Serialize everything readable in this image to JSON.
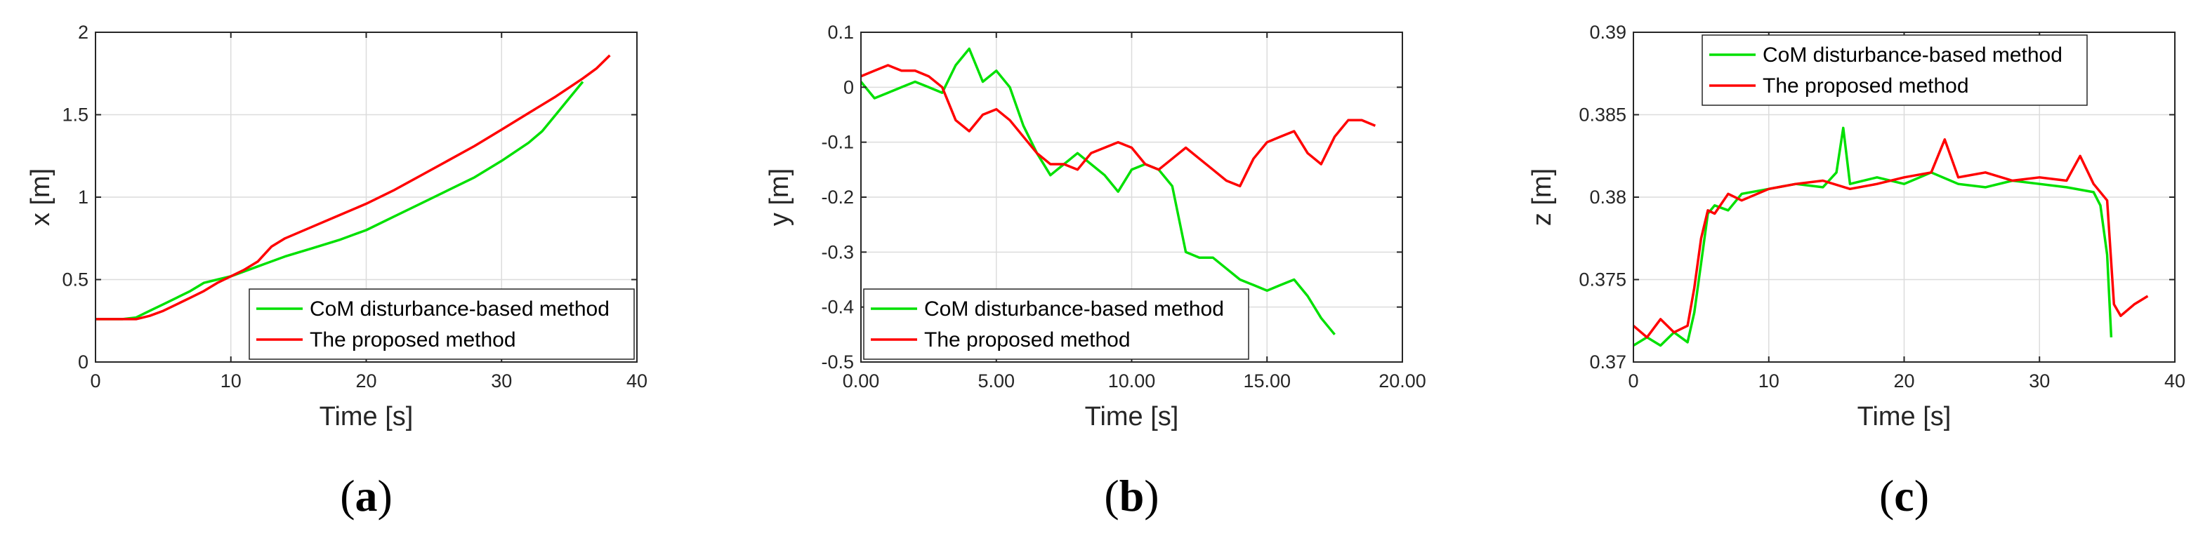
{
  "chart_data": [
    {
      "type": "line",
      "panel_label": "a",
      "xlabel": "Time [s]",
      "ylabel": "x [m]",
      "xlim": [
        0,
        40
      ],
      "ylim": [
        0,
        2
      ],
      "xticks": [
        0,
        10,
        20,
        30,
        40
      ],
      "xtick_labels": [
        "0",
        "10",
        "20",
        "30",
        "40"
      ],
      "yticks": [
        0,
        0.5,
        1,
        1.5,
        2
      ],
      "ytick_labels": [
        "0",
        "0.5",
        "1",
        "1.5",
        "2"
      ],
      "grid": true,
      "legend_position": "bottom-right",
      "series": [
        {
          "name": "CoM disturbance-based method",
          "color": "#00e000",
          "x": [
            0,
            2,
            3,
            4,
            5,
            6,
            7,
            8,
            9,
            10,
            12,
            14,
            16,
            18,
            19,
            20,
            22,
            24,
            26,
            28,
            30,
            32,
            33,
            34,
            35,
            36
          ],
          "y": [
            0.26,
            0.26,
            0.27,
            0.31,
            0.35,
            0.39,
            0.43,
            0.48,
            0.5,
            0.52,
            0.58,
            0.64,
            0.69,
            0.74,
            0.77,
            0.8,
            0.88,
            0.96,
            1.04,
            1.12,
            1.22,
            1.33,
            1.4,
            1.5,
            1.6,
            1.7
          ]
        },
        {
          "name": "The proposed method",
          "color": "#ff0000",
          "x": [
            0,
            2,
            3,
            4,
            5,
            6,
            7,
            8,
            9,
            10,
            11,
            12,
            13,
            14,
            16,
            18,
            20,
            22,
            24,
            26,
            28,
            30,
            32,
            34,
            36,
            37,
            38
          ],
          "y": [
            0.26,
            0.26,
            0.26,
            0.28,
            0.31,
            0.35,
            0.39,
            0.43,
            0.48,
            0.52,
            0.56,
            0.61,
            0.7,
            0.75,
            0.82,
            0.89,
            0.96,
            1.04,
            1.13,
            1.22,
            1.31,
            1.41,
            1.51,
            1.61,
            1.72,
            1.78,
            1.86
          ]
        }
      ]
    },
    {
      "type": "line",
      "panel_label": "b",
      "xlabel": "Time [s]",
      "ylabel": "y [m]",
      "xlim": [
        0,
        20
      ],
      "ylim": [
        -0.5,
        0.1
      ],
      "xticks": [
        0,
        5,
        10,
        15,
        20
      ],
      "xtick_labels": [
        "0.00",
        "5.00",
        "10.00",
        "15.00",
        "20.00"
      ],
      "yticks": [
        -0.5,
        -0.4,
        -0.3,
        -0.2,
        -0.1,
        0,
        0.1
      ],
      "ytick_labels": [
        "-0.5",
        "-0.4",
        "-0.3",
        "-0.2",
        "-0.1",
        "0",
        "0.1"
      ],
      "grid": true,
      "legend_position": "bottom-left",
      "series": [
        {
          "name": "CoM disturbance-based method",
          "color": "#00e000",
          "x": [
            0,
            0.5,
            1,
            1.5,
            2,
            2.5,
            3,
            3.5,
            4,
            4.5,
            5,
            5.5,
            6,
            6.5,
            7,
            7.5,
            8,
            8.5,
            9,
            9.5,
            10,
            10.5,
            11,
            11.5,
            12,
            12.5,
            13,
            13.5,
            14,
            14.5,
            15,
            15.5,
            16,
            16.5,
            17,
            17.5
          ],
          "y": [
            0.01,
            -0.02,
            -0.01,
            0.0,
            0.01,
            0.0,
            -0.01,
            0.04,
            0.07,
            0.01,
            0.03,
            0.0,
            -0.07,
            -0.12,
            -0.16,
            -0.14,
            -0.12,
            -0.14,
            -0.16,
            -0.19,
            -0.15,
            -0.14,
            -0.15,
            -0.18,
            -0.3,
            -0.31,
            -0.31,
            -0.33,
            -0.35,
            -0.36,
            -0.37,
            -0.36,
            -0.35,
            -0.38,
            -0.42,
            -0.45
          ]
        },
        {
          "name": "The proposed method",
          "color": "#ff0000",
          "x": [
            0,
            0.5,
            1,
            1.5,
            2,
            2.5,
            3,
            3.5,
            4,
            4.5,
            5,
            5.5,
            6,
            6.5,
            7,
            7.5,
            8,
            8.5,
            9,
            9.5,
            10,
            10.5,
            11,
            11.5,
            12,
            12.5,
            13,
            13.5,
            14,
            14.5,
            15,
            15.5,
            16,
            16.5,
            17,
            17.5,
            18,
            18.5,
            19
          ],
          "y": [
            0.02,
            0.03,
            0.04,
            0.03,
            0.03,
            0.02,
            0.0,
            -0.06,
            -0.08,
            -0.05,
            -0.04,
            -0.06,
            -0.09,
            -0.12,
            -0.14,
            -0.14,
            -0.15,
            -0.12,
            -0.11,
            -0.1,
            -0.11,
            -0.14,
            -0.15,
            -0.13,
            -0.11,
            -0.13,
            -0.15,
            -0.17,
            -0.18,
            -0.13,
            -0.1,
            -0.09,
            -0.08,
            -0.12,
            -0.14,
            -0.09,
            -0.06,
            -0.06,
            -0.07
          ]
        }
      ]
    },
    {
      "type": "line",
      "panel_label": "c",
      "xlabel": "Time [s]",
      "ylabel": "z [m]",
      "xlim": [
        0,
        40
      ],
      "ylim": [
        0.37,
        0.39
      ],
      "xticks": [
        0,
        10,
        20,
        30,
        40
      ],
      "xtick_labels": [
        "0",
        "10",
        "20",
        "30",
        "40"
      ],
      "yticks": [
        0.37,
        0.375,
        0.38,
        0.385,
        0.39
      ],
      "ytick_labels": [
        "0.37",
        "0.375",
        "0.38",
        "0.385",
        "0.39"
      ],
      "grid": true,
      "legend_position": "top-left",
      "series": [
        {
          "name": "CoM disturbance-based method",
          "color": "#00e000",
          "x": [
            0,
            1,
            2,
            3,
            4,
            4.5,
            5,
            5.5,
            6,
            7,
            8,
            10,
            12,
            14,
            15,
            15.5,
            16,
            18,
            20,
            22,
            24,
            26,
            28,
            30,
            32,
            34,
            34.5,
            35,
            35.3
          ],
          "y": [
            0.371,
            0.3715,
            0.371,
            0.3718,
            0.3712,
            0.373,
            0.376,
            0.379,
            0.3795,
            0.3792,
            0.3802,
            0.3805,
            0.3808,
            0.3806,
            0.3815,
            0.3842,
            0.3808,
            0.3812,
            0.3808,
            0.3815,
            0.3808,
            0.3806,
            0.381,
            0.3808,
            0.3806,
            0.3803,
            0.3795,
            0.3765,
            0.3715
          ]
        },
        {
          "name": "The proposed method",
          "color": "#ff0000",
          "x": [
            0,
            1,
            2,
            3,
            4,
            4.5,
            5,
            5.5,
            6,
            7,
            8,
            10,
            12,
            14,
            16,
            18,
            20,
            22,
            23,
            24,
            26,
            28,
            30,
            32,
            33,
            34,
            35,
            35.5,
            36,
            37,
            38
          ],
          "y": [
            0.3722,
            0.3715,
            0.3726,
            0.3718,
            0.3722,
            0.3745,
            0.3775,
            0.3792,
            0.379,
            0.3802,
            0.3798,
            0.3805,
            0.3808,
            0.381,
            0.3805,
            0.3808,
            0.3812,
            0.3815,
            0.3835,
            0.3812,
            0.3815,
            0.381,
            0.3812,
            0.381,
            0.3825,
            0.3808,
            0.3798,
            0.3735,
            0.3728,
            0.3735,
            0.374
          ]
        }
      ]
    }
  ]
}
